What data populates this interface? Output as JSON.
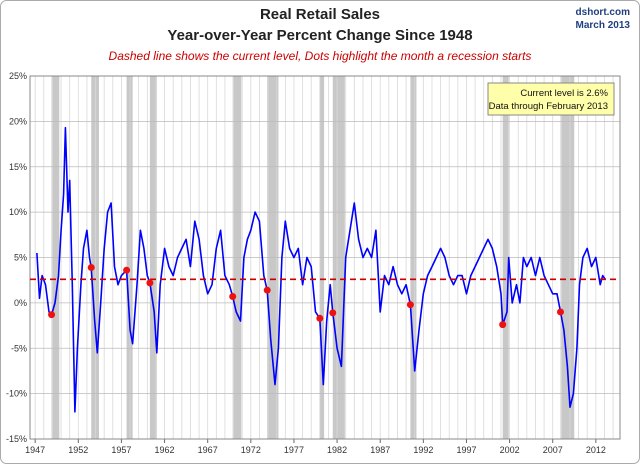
{
  "chart_data": {
    "type": "line",
    "title": [
      "Real Retail Sales",
      "Year-over-Year Percent Change Since 1948"
    ],
    "subtitle": "Dashed line shows the current level, Dots highlight the month a recession starts",
    "source": "dshort.com",
    "date": "March 2013",
    "annotation": [
      "Current level is 2.6%",
      "Data through February 2013"
    ],
    "color": "#0000ff",
    "x": [
      1947.2,
      1947.5,
      1947.8,
      1948.2,
      1948.6,
      1948.9,
      1949.3,
      1949.7,
      1950.0,
      1950.3,
      1950.5,
      1950.8,
      1951.0,
      1951.3,
      1951.6,
      1951.9,
      1952.3,
      1952.6,
      1953.0,
      1953.3,
      1953.5,
      1953.9,
      1954.2,
      1954.6,
      1955.0,
      1955.4,
      1955.8,
      1956.2,
      1956.6,
      1957.0,
      1957.6,
      1958.0,
      1958.3,
      1958.8,
      1959.2,
      1959.6,
      1960.0,
      1960.3,
      1960.8,
      1961.1,
      1961.5,
      1962.0,
      1962.5,
      1963.0,
      1963.5,
      1964.0,
      1964.5,
      1965.0,
      1965.5,
      1966.0,
      1966.5,
      1967.0,
      1967.5,
      1968.0,
      1968.5,
      1969.0,
      1969.5,
      1969.9,
      1970.3,
      1970.8,
      1971.2,
      1971.6,
      1972.0,
      1972.5,
      1973.0,
      1973.5,
      1973.9,
      1974.3,
      1974.8,
      1975.2,
      1975.6,
      1976.0,
      1976.5,
      1977.0,
      1977.5,
      1978.0,
      1978.5,
      1979.0,
      1979.5,
      1980.0,
      1980.4,
      1980.8,
      1981.2,
      1981.5,
      1982.0,
      1982.5,
      1983.0,
      1983.5,
      1984.0,
      1984.5,
      1985.0,
      1985.5,
      1986.0,
      1986.5,
      1987.0,
      1987.5,
      1988.0,
      1988.5,
      1989.0,
      1989.5,
      1990.0,
      1990.5,
      1991.0,
      1991.5,
      1992.0,
      1992.5,
      1993.0,
      1993.5,
      1994.0,
      1994.5,
      1995.0,
      1995.5,
      1996.0,
      1996.5,
      1997.0,
      1997.5,
      1998.0,
      1998.5,
      1999.0,
      1999.5,
      2000.0,
      2000.5,
      2001.0,
      2001.2,
      2001.7,
      2001.9,
      2002.3,
      2002.8,
      2003.2,
      2003.6,
      2004.0,
      2004.5,
      2005.0,
      2005.5,
      2006.0,
      2006.5,
      2007.0,
      2007.5,
      2007.9,
      2008.3,
      2008.7,
      2009.0,
      2009.4,
      2009.8,
      2010.1,
      2010.5,
      2011.0,
      2011.5,
      2012.0,
      2012.5,
      2012.8,
      2013.1
    ],
    "values": [
      5.5,
      0.5,
      3,
      2,
      -1,
      -1.3,
      0,
      3,
      8,
      12,
      19.3,
      10,
      13.5,
      2,
      -12,
      -5,
      2,
      6,
      8,
      5,
      3.9,
      -2,
      -5.5,
      0,
      6,
      10,
      11,
      4,
      2,
      3,
      3.6,
      -3,
      -4.5,
      2,
      8,
      6,
      3,
      2.2,
      -1,
      -5.5,
      2,
      6,
      4,
      3,
      5,
      6,
      7,
      4,
      9,
      7,
      3,
      1,
      2,
      6,
      8,
      3,
      2,
      0.7,
      -1,
      -2,
      5,
      7,
      8,
      10,
      9,
      3,
      1.4,
      -4,
      -9,
      -5,
      5,
      9,
      6,
      5,
      6,
      2,
      5,
      4,
      -1,
      -1.7,
      -9,
      -2,
      2,
      -1.1,
      -5,
      -7,
      5,
      8,
      11,
      7,
      5,
      6,
      5,
      8,
      -1,
      3,
      2,
      4,
      2,
      1,
      2,
      -0.2,
      -7.5,
      -3,
      1,
      3,
      4,
      5,
      6,
      5,
      3,
      2,
      3,
      3,
      1,
      3,
      4,
      5,
      6,
      7,
      6,
      4,
      1,
      -2.4,
      -1,
      5,
      0,
      2,
      0,
      5,
      4,
      5,
      3,
      5,
      3,
      2,
      1,
      1,
      -1.0,
      -3,
      -7,
      -11.5,
      -10,
      -5,
      2,
      5,
      6,
      4,
      5,
      2,
      3,
      2.6
    ],
    "xlim": [
      1946.4,
      2014.8
    ],
    "ylim": [
      -15,
      25
    ],
    "xticks": [
      1947,
      1952,
      1957,
      1962,
      1967,
      1972,
      1977,
      1982,
      1987,
      1992,
      1997,
      2002,
      2007,
      2012
    ],
    "minor_xticks": [
      1947,
      1948,
      1949,
      1950,
      1951,
      1952,
      1953,
      1954,
      1955,
      1956,
      1957,
      1958,
      1959,
      1960,
      1961,
      1962,
      1963,
      1964,
      1965,
      1966,
      1967,
      1968,
      1969,
      1970,
      1971,
      1972,
      1973,
      1974,
      1975,
      1976,
      1977,
      1978,
      1979,
      1980,
      1981,
      1982,
      1983,
      1984,
      1985,
      1986,
      1987,
      1988,
      1989,
      1990,
      1991,
      1992,
      1993,
      1994,
      1995,
      1996,
      1997,
      1998,
      1999,
      2000,
      2001,
      2002,
      2003,
      2004,
      2005,
      2006,
      2007,
      2008,
      2009,
      2010,
      2011,
      2012,
      2013,
      2014
    ],
    "yticks": [
      {
        "value": -15,
        "label": "-15%"
      },
      {
        "value": -10,
        "label": "-10%"
      },
      {
        "value": -5,
        "label": "-5%"
      },
      {
        "value": 0,
        "label": "0%"
      },
      {
        "value": 5,
        "label": "5%"
      },
      {
        "value": 10,
        "label": "10%"
      },
      {
        "value": 15,
        "label": "15%"
      },
      {
        "value": 20,
        "label": "20%"
      },
      {
        "value": 25,
        "label": "25%"
      }
    ],
    "grid": true,
    "recessions": [
      [
        1948.9,
        1949.8
      ],
      [
        1953.5,
        1954.4
      ],
      [
        1957.6,
        1958.3
      ],
      [
        1960.3,
        1961.1
      ],
      [
        1969.9,
        1970.9
      ],
      [
        1973.9,
        1975.2
      ],
      [
        1980.0,
        1980.5
      ],
      [
        1981.5,
        1982.9
      ],
      [
        1990.5,
        1991.2
      ],
      [
        2001.2,
        2001.9
      ],
      [
        2007.9,
        2009.5
      ]
    ],
    "recession_color": "#c8c8c8",
    "recession_dots": {
      "x": [
        1948.9,
        1953.5,
        1957.6,
        1960.3,
        1969.9,
        1973.9,
        1980.0,
        1981.5,
        1990.5,
        2001.2,
        2007.9
      ],
      "values": [
        -1.3,
        3.9,
        3.6,
        2.2,
        0.7,
        1.4,
        -1.7,
        -1.1,
        -0.2,
        -2.4,
        -1.0
      ],
      "color": "#ee1111"
    },
    "current_level": 2.6,
    "current_level_color": "#cc0000"
  }
}
